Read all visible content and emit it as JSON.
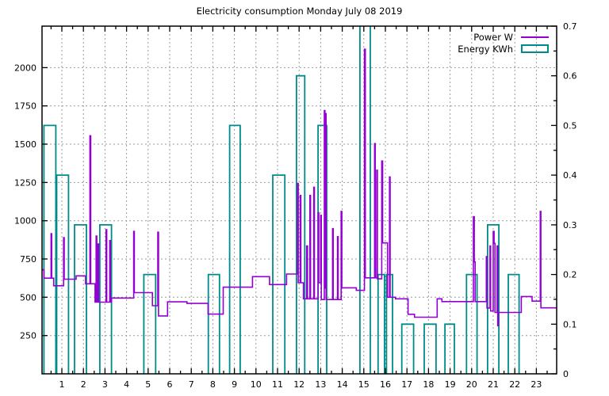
{
  "title": "Electricity consumption Monday July 08 2019",
  "colors": {
    "power": "#9400d3",
    "energy": "#008b8b",
    "grid": "#9a9a9a",
    "border": "#000000",
    "background": "#ffffff"
  },
  "legend": {
    "items": [
      {
        "label": "Power W",
        "series": "power",
        "sample": "line"
      },
      {
        "label": "Energy KWh",
        "series": "energy",
        "sample": "box"
      }
    ]
  },
  "chart_data": {
    "type": "line+bar",
    "title": "Electricity consumption Monday July 08 2019",
    "x_axis": {
      "unit": "hour of day",
      "min": 0,
      "max": 24,
      "major_ticks": [
        1,
        2,
        3,
        4,
        5,
        6,
        7,
        8,
        9,
        10,
        11,
        12,
        13,
        14,
        15,
        16,
        17,
        18,
        19,
        20,
        21,
        22,
        23
      ],
      "minor_tick_step": 0.5,
      "grid": true
    },
    "y_left_axis": {
      "label": "Power W",
      "min": 0,
      "max": 2271,
      "major_ticks": [
        250,
        500,
        750,
        1000,
        1250,
        1500,
        1750,
        2000
      ],
      "grid": true
    },
    "y_right_axis": {
      "label": "Energy KWh",
      "min": 0,
      "max": 0.7,
      "major_ticks": [
        0,
        0.1,
        0.2,
        0.3,
        0.4,
        0.5,
        0.6,
        0.7
      ],
      "minor_tick_step": 0.05,
      "grid": false
    },
    "power_w_series": {
      "style": "step-line",
      "points": [
        [
          0.08,
          680
        ],
        [
          0.17,
          680
        ],
        [
          0.17,
          625
        ],
        [
          0.5,
          625
        ],
        [
          0.5,
          915
        ],
        [
          0.53,
          915
        ],
        [
          0.53,
          625
        ],
        [
          0.62,
          625
        ],
        [
          0.62,
          575
        ],
        [
          1.08,
          575
        ],
        [
          1.08,
          890
        ],
        [
          1.11,
          890
        ],
        [
          1.11,
          618
        ],
        [
          1.66,
          618
        ],
        [
          1.66,
          640
        ],
        [
          2.1,
          640
        ],
        [
          2.1,
          588
        ],
        [
          2.3,
          588
        ],
        [
          2.3,
          1555
        ],
        [
          2.34,
          1555
        ],
        [
          2.34,
          588
        ],
        [
          2.54,
          588
        ],
        [
          2.54,
          468
        ],
        [
          2.59,
          468
        ],
        [
          2.59,
          900
        ],
        [
          2.62,
          900
        ],
        [
          2.62,
          468
        ],
        [
          2.68,
          468
        ],
        [
          2.68,
          848
        ],
        [
          2.71,
          848
        ],
        [
          2.71,
          468
        ],
        [
          3.05,
          468
        ],
        [
          3.05,
          941
        ],
        [
          3.08,
          941
        ],
        [
          3.08,
          468
        ],
        [
          3.22,
          468
        ],
        [
          3.22,
          870
        ],
        [
          3.25,
          870
        ],
        [
          3.25,
          468
        ],
        [
          3.3,
          468
        ],
        [
          3.3,
          495
        ],
        [
          4.33,
          495
        ],
        [
          4.33,
          930
        ],
        [
          4.36,
          930
        ],
        [
          4.36,
          530
        ],
        [
          5.2,
          530
        ],
        [
          5.2,
          445
        ],
        [
          5.45,
          445
        ],
        [
          5.45,
          925
        ],
        [
          5.48,
          925
        ],
        [
          5.48,
          378
        ],
        [
          5.9,
          378
        ],
        [
          5.9,
          470
        ],
        [
          6.8,
          470
        ],
        [
          6.8,
          460
        ],
        [
          7.78,
          460
        ],
        [
          7.78,
          390
        ],
        [
          8.48,
          390
        ],
        [
          8.48,
          566
        ],
        [
          9.84,
          566
        ],
        [
          9.84,
          635
        ],
        [
          10.63,
          635
        ],
        [
          10.63,
          583
        ],
        [
          11.42,
          583
        ],
        [
          11.42,
          652
        ],
        [
          11.93,
          652
        ],
        [
          11.93,
          1244
        ],
        [
          11.96,
          1244
        ],
        [
          11.96,
          595
        ],
        [
          12.05,
          595
        ],
        [
          12.05,
          1165
        ],
        [
          12.08,
          1165
        ],
        [
          12.08,
          595
        ],
        [
          12.2,
          595
        ],
        [
          12.2,
          490
        ],
        [
          12.35,
          490
        ],
        [
          12.35,
          835
        ],
        [
          12.39,
          835
        ],
        [
          12.39,
          490
        ],
        [
          12.5,
          490
        ],
        [
          12.5,
          1165
        ],
        [
          12.53,
          1165
        ],
        [
          12.53,
          490
        ],
        [
          12.68,
          490
        ],
        [
          12.68,
          1219
        ],
        [
          12.71,
          1219
        ],
        [
          12.71,
          490
        ],
        [
          12.88,
          490
        ],
        [
          12.88,
          1052
        ],
        [
          12.91,
          1052
        ],
        [
          12.91,
          595
        ],
        [
          13.0,
          595
        ],
        [
          13.0,
          1035
        ],
        [
          13.03,
          1035
        ],
        [
          13.03,
          485
        ],
        [
          13.17,
          485
        ],
        [
          13.17,
          1720
        ],
        [
          13.2,
          1720
        ],
        [
          13.2,
          560
        ],
        [
          13.22,
          560
        ],
        [
          13.22,
          1700
        ],
        [
          13.25,
          1700
        ],
        [
          13.25,
          485
        ],
        [
          13.55,
          485
        ],
        [
          13.55,
          948
        ],
        [
          13.58,
          948
        ],
        [
          13.58,
          485
        ],
        [
          13.78,
          485
        ],
        [
          13.78,
          896
        ],
        [
          13.81,
          896
        ],
        [
          13.81,
          485
        ],
        [
          13.95,
          485
        ],
        [
          13.95,
          1061
        ],
        [
          13.98,
          1061
        ],
        [
          13.98,
          562
        ],
        [
          14.65,
          562
        ],
        [
          14.65,
          545
        ],
        [
          15.03,
          545
        ],
        [
          15.03,
          2120
        ],
        [
          15.07,
          2120
        ],
        [
          15.07,
          627
        ],
        [
          15.5,
          627
        ],
        [
          15.5,
          1504
        ],
        [
          15.53,
          1504
        ],
        [
          15.53,
          627
        ],
        [
          15.6,
          627
        ],
        [
          15.6,
          1330
        ],
        [
          15.63,
          1330
        ],
        [
          15.63,
          620
        ],
        [
          15.83,
          620
        ],
        [
          15.83,
          1390
        ],
        [
          15.87,
          1390
        ],
        [
          15.87,
          855
        ],
        [
          16.1,
          855
        ],
        [
          16.1,
          500
        ],
        [
          16.19,
          500
        ],
        [
          16.19,
          1286
        ],
        [
          16.22,
          1286
        ],
        [
          16.22,
          500
        ],
        [
          16.47,
          500
        ],
        [
          16.47,
          490
        ],
        [
          17.05,
          490
        ],
        [
          17.05,
          389
        ],
        [
          17.35,
          389
        ],
        [
          17.35,
          370
        ],
        [
          18.4,
          370
        ],
        [
          18.4,
          490
        ],
        [
          18.62,
          490
        ],
        [
          18.62,
          472
        ],
        [
          20.08,
          472
        ],
        [
          20.08,
          1026
        ],
        [
          20.12,
          1026
        ],
        [
          20.12,
          731
        ],
        [
          20.16,
          731
        ],
        [
          20.16,
          472
        ],
        [
          20.68,
          472
        ],
        [
          20.68,
          766
        ],
        [
          20.71,
          766
        ],
        [
          20.71,
          430
        ],
        [
          20.85,
          430
        ],
        [
          20.85,
          835
        ],
        [
          20.88,
          835
        ],
        [
          20.88,
          410
        ],
        [
          21.0,
          410
        ],
        [
          21.0,
          930
        ],
        [
          21.04,
          930
        ],
        [
          21.04,
          852
        ],
        [
          21.08,
          852
        ],
        [
          21.08,
          401
        ],
        [
          21.18,
          401
        ],
        [
          21.18,
          835
        ],
        [
          21.21,
          835
        ],
        [
          21.21,
          314
        ],
        [
          21.24,
          314
        ],
        [
          21.24,
          401
        ],
        [
          22.3,
          401
        ],
        [
          22.3,
          505
        ],
        [
          22.8,
          505
        ],
        [
          22.8,
          475
        ],
        [
          23.18,
          475
        ],
        [
          23.18,
          1061
        ],
        [
          23.21,
          1061
        ],
        [
          23.21,
          431
        ],
        [
          23.94,
          431
        ]
      ]
    },
    "energy_kwh_bars": {
      "style": "outline-box",
      "bars": [
        {
          "from": 0.17,
          "to": 0.72,
          "value": 0.5
        },
        {
          "from": 0.76,
          "to": 1.31,
          "value": 0.4
        },
        {
          "from": 1.59,
          "to": 2.14,
          "value": 0.3
        },
        {
          "from": 2.76,
          "to": 3.3,
          "value": 0.3
        },
        {
          "from": 4.8,
          "to": 5.35,
          "value": 0.2
        },
        {
          "from": 7.79,
          "to": 8.31,
          "value": 0.2
        },
        {
          "from": 8.78,
          "to": 9.27,
          "value": 0.5
        },
        {
          "from": 10.78,
          "to": 11.34,
          "value": 0.4
        },
        {
          "from": 11.88,
          "to": 12.26,
          "value": 0.6
        },
        {
          "from": 12.88,
          "to": 13.28,
          "value": 0.5
        },
        {
          "from": 14.82,
          "to": 15.3,
          "value": 0.7,
          "clipped": true
        },
        {
          "from": 15.66,
          "to": 15.96,
          "value": 0.2
        },
        {
          "from": 16.05,
          "to": 16.33,
          "value": 0.2
        },
        {
          "from": 16.76,
          "to": 17.31,
          "value": 0.1
        },
        {
          "from": 17.8,
          "to": 18.35,
          "value": 0.1
        },
        {
          "from": 18.76,
          "to": 19.2,
          "value": 0.1
        },
        {
          "from": 19.76,
          "to": 20.25,
          "value": 0.2
        },
        {
          "from": 20.74,
          "to": 21.26,
          "value": 0.3
        },
        {
          "from": 21.7,
          "to": 22.2,
          "value": 0.2
        }
      ]
    }
  }
}
